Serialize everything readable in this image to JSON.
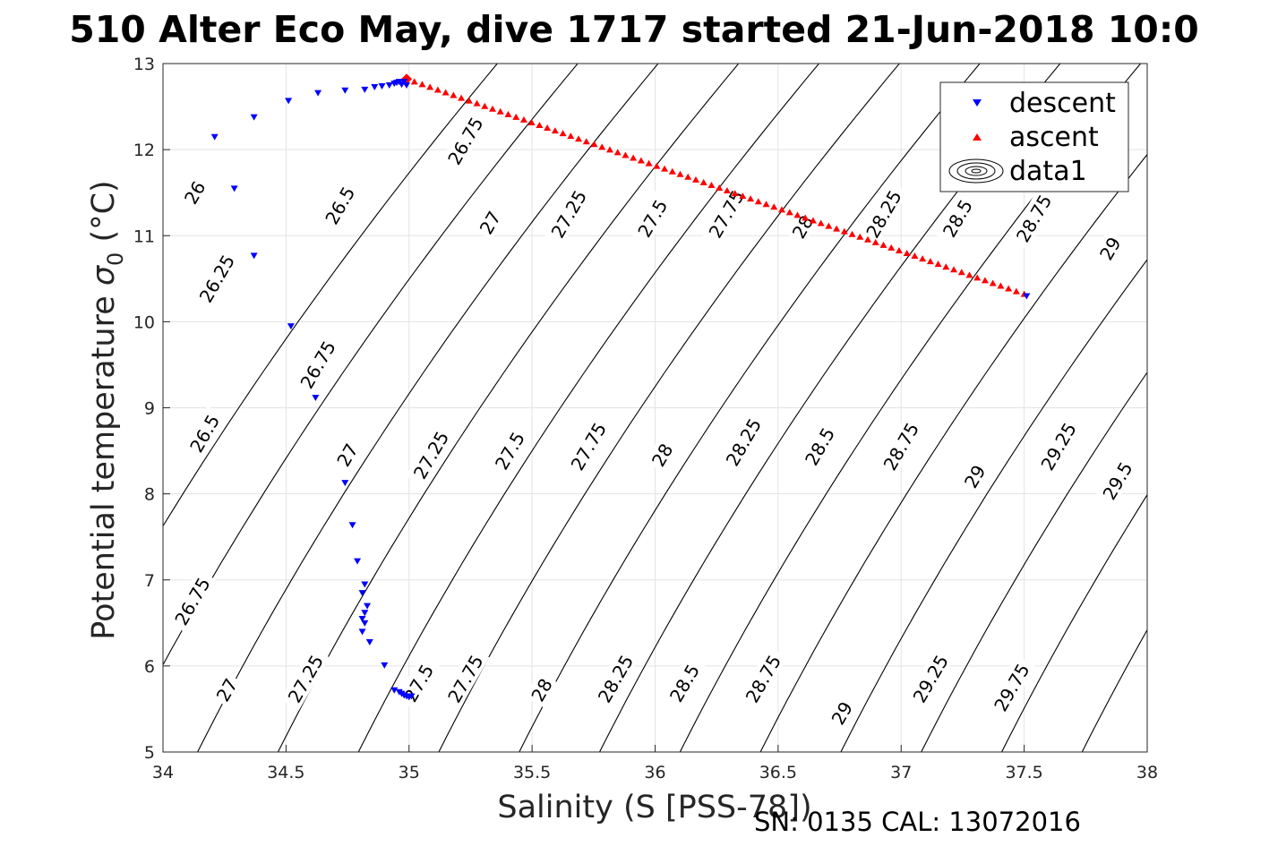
{
  "title": "510 Alter Eco May, dive 1717 started 21-Jun-2018 10:0",
  "footer": "SN: 0135  CAL: 13072016",
  "chart_data": {
    "type": "scatter",
    "xlabel": "Salinity (S [PSS-78])",
    "ylabel_main": "Potential temperature ",
    "ylabel_sym": "σ",
    "ylabel_sub": "0",
    "ylabel_unit": " (°C)",
    "xlim": [
      34,
      38
    ],
    "ylim": [
      5,
      13
    ],
    "xticks": [
      34,
      34.5,
      35,
      35.5,
      36,
      36.5,
      37,
      37.5,
      38
    ],
    "xtick_labels": [
      "34",
      "34.5",
      "35",
      "35.5",
      "36",
      "36.5",
      "37",
      "37.5",
      "38"
    ],
    "yticks": [
      5,
      6,
      7,
      8,
      9,
      10,
      11,
      12,
      13
    ],
    "ytick_labels": [
      "5",
      "6",
      "7",
      "8",
      "9",
      "10",
      "11",
      "12",
      "13"
    ],
    "grid": true,
    "legend_position": "top-right",
    "series": [
      {
        "name": "descent",
        "marker": "triangle-down",
        "color": "#0000ff",
        "points": [
          [
            34.21,
            12.15
          ],
          [
            34.29,
            11.55
          ],
          [
            34.37,
            12.38
          ],
          [
            34.37,
            10.77
          ],
          [
            34.51,
            12.57
          ],
          [
            34.52,
            9.95
          ],
          [
            34.62,
            9.12
          ],
          [
            34.63,
            12.66
          ],
          [
            34.74,
            12.69
          ],
          [
            34.74,
            8.13
          ],
          [
            34.77,
            7.64
          ],
          [
            34.79,
            7.22
          ],
          [
            34.82,
            12.7
          ],
          [
            34.82,
            6.95
          ],
          [
            34.81,
            6.85
          ],
          [
            34.83,
            6.7
          ],
          [
            34.82,
            6.62
          ],
          [
            34.81,
            6.55
          ],
          [
            34.82,
            6.5
          ],
          [
            34.81,
            6.4
          ],
          [
            34.84,
            6.28
          ],
          [
            34.86,
            12.73
          ],
          [
            34.89,
            12.74
          ],
          [
            34.9,
            6.01
          ],
          [
            34.92,
            12.75
          ],
          [
            34.94,
            12.77
          ],
          [
            34.95,
            12.78
          ],
          [
            34.96,
            12.79
          ],
          [
            34.97,
            12.76
          ],
          [
            34.98,
            12.79
          ],
          [
            34.99,
            12.75
          ],
          [
            34.94,
            5.72
          ],
          [
            34.96,
            5.7
          ],
          [
            34.97,
            5.68
          ],
          [
            34.98,
            5.66
          ],
          [
            34.99,
            5.65
          ],
          [
            35.0,
            5.64
          ],
          [
            35.01,
            5.65
          ],
          [
            37.51,
            10.3
          ]
        ]
      },
      {
        "name": "ascent",
        "marker": "triangle-up",
        "color": "#ff0000",
        "start": [
          34.99,
          12.82
        ],
        "end": [
          37.5,
          10.32
        ],
        "count": 80,
        "first_marker": "diamond"
      },
      {
        "name": "data1",
        "type": "contour"
      }
    ],
    "contours": {
      "levels": [
        26,
        26.25,
        26.5,
        26.75,
        27,
        27.25,
        27.5,
        27.75,
        28,
        28.25,
        28.5,
        28.75,
        29,
        29.25,
        29.5,
        29.75,
        30,
        30.25
      ],
      "labels": [
        {
          "text": "26",
          "s": 34.13,
          "t": 11.5
        },
        {
          "text": "26.25",
          "s": 34.22,
          "t": 10.5
        },
        {
          "text": "26.5",
          "s": 34.17,
          "t": 8.7
        },
        {
          "text": "26.75",
          "s": 34.12,
          "t": 6.75
        },
        {
          "text": "27",
          "s": 34.26,
          "t": 5.72
        },
        {
          "text": "26.5",
          "s": 34.72,
          "t": 11.35
        },
        {
          "text": "26.75",
          "s": 34.63,
          "t": 9.5
        },
        {
          "text": "27",
          "s": 34.75,
          "t": 8.45
        },
        {
          "text": "27.25",
          "s": 34.58,
          "t": 5.85
        },
        {
          "text": "26.75",
          "s": 35.23,
          "t": 12.1
        },
        {
          "text": "27",
          "s": 35.33,
          "t": 11.15
        },
        {
          "text": "27.25",
          "s": 35.09,
          "t": 8.45
        },
        {
          "text": "27.5",
          "s": 35.04,
          "t": 5.8
        },
        {
          "text": "27.25",
          "s": 35.65,
          "t": 11.25
        },
        {
          "text": "27.5",
          "s": 35.41,
          "t": 8.5
        },
        {
          "text": "27.75",
          "s": 35.23,
          "t": 5.85
        },
        {
          "text": "27.5",
          "s": 35.99,
          "t": 11.2
        },
        {
          "text": "27.75",
          "s": 35.73,
          "t": 8.55
        },
        {
          "text": "28",
          "s": 35.54,
          "t": 5.72
        },
        {
          "text": "27.75",
          "s": 36.29,
          "t": 11.25
        },
        {
          "text": "28",
          "s": 36.03,
          "t": 8.45
        },
        {
          "text": "28.25",
          "s": 35.84,
          "t": 5.85
        },
        {
          "text": "28",
          "s": 36.6,
          "t": 11.1
        },
        {
          "text": "28.25",
          "s": 36.36,
          "t": 8.6
        },
        {
          "text": "28.5",
          "s": 36.12,
          "t": 5.8
        },
        {
          "text": "28.25",
          "s": 36.93,
          "t": 11.25
        },
        {
          "text": "28.5",
          "s": 36.67,
          "t": 8.55
        },
        {
          "text": "28.75",
          "s": 36.44,
          "t": 5.85
        },
        {
          "text": "28.5",
          "s": 37.23,
          "t": 11.2
        },
        {
          "text": "28.75",
          "s": 37.0,
          "t": 8.55
        },
        {
          "text": "29",
          "s": 36.76,
          "t": 5.45
        },
        {
          "text": "28.75",
          "s": 37.54,
          "t": 11.2
        },
        {
          "text": "29",
          "s": 37.3,
          "t": 8.2
        },
        {
          "text": "29.25",
          "s": 37.12,
          "t": 5.85
        },
        {
          "text": "29",
          "s": 37.85,
          "t": 10.85
        },
        {
          "text": "29.25",
          "s": 37.64,
          "t": 8.55
        },
        {
          "text": "29.75",
          "s": 37.45,
          "t": 5.75
        },
        {
          "text": "29.5",
          "s": 37.88,
          "t": 8.15
        }
      ]
    }
  }
}
